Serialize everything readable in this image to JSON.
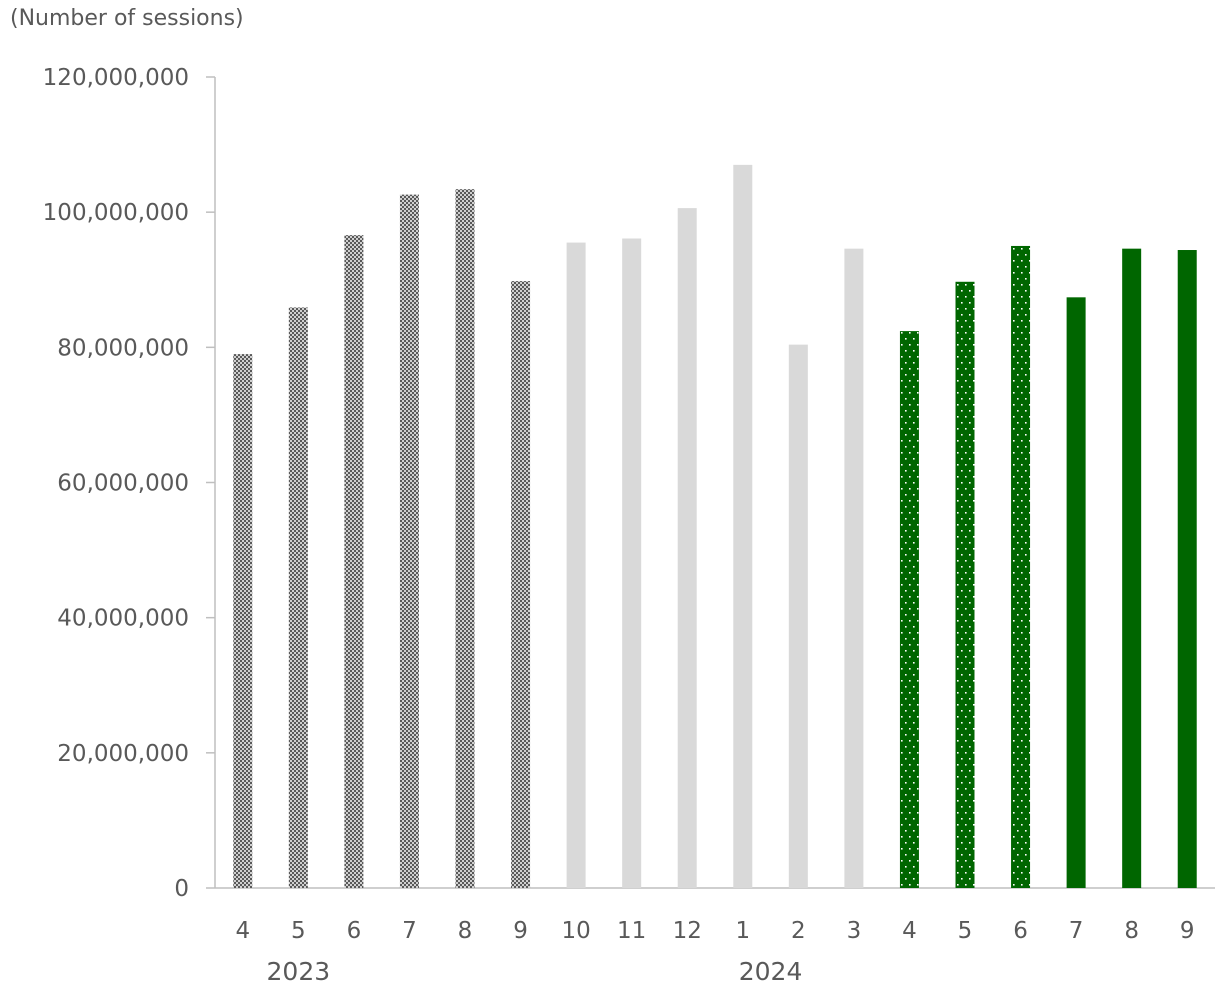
{
  "unit_label": "(Number of sessions)",
  "colors": {
    "gray_pattern_fg": "#595959",
    "gray_pattern_bg": "#d0d0d0",
    "light_gray": "#d9d9d9",
    "green": "#006600",
    "axis": "#bfbfbf",
    "text": "#595959"
  },
  "chart_data": {
    "type": "bar",
    "title": "",
    "xlabel": "",
    "ylabel": "(Number of sessions)",
    "ylim": [
      0,
      120000000
    ],
    "yticks": [
      0,
      20000000,
      40000000,
      60000000,
      80000000,
      100000000,
      120000000
    ],
    "ytick_labels": [
      "0",
      "20,000,000",
      "40,000,000",
      "60,000,000",
      "80,000,000",
      "100,000,000",
      "120,000,000"
    ],
    "categories": [
      "4",
      "5",
      "6",
      "7",
      "8",
      "9",
      "10",
      "11",
      "12",
      "1",
      "2",
      "3",
      "4",
      "5",
      "6",
      "7",
      "8",
      "9"
    ],
    "values": [
      79000000,
      85900000,
      96600000,
      102600000,
      103400000,
      89800000,
      95500000,
      96100000,
      100600000,
      107000000,
      80400000,
      94600000,
      82400000,
      89700000,
      95000000,
      87400000,
      94600000,
      94400000
    ],
    "bar_styles": [
      "gray-check",
      "gray-check",
      "gray-check",
      "gray-check",
      "gray-check",
      "gray-check",
      "light-gray",
      "light-gray",
      "light-gray",
      "light-gray",
      "light-gray",
      "light-gray",
      "green-dots",
      "green-dots",
      "green-dots",
      "green",
      "green",
      "green"
    ],
    "year_groups": [
      {
        "label": "2023",
        "category_index": 1
      },
      {
        "label": "2024",
        "category_index": 9.5
      }
    ],
    "grid": false,
    "legend": "none"
  }
}
